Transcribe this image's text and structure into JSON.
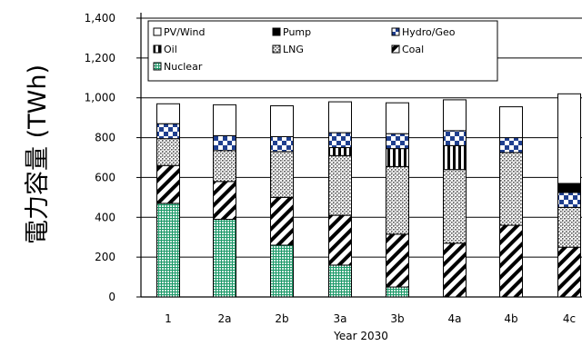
{
  "chart_data": {
    "type": "bar",
    "stacked": true,
    "xlabel": "Year 2030",
    "ylabel": "電力容量 (TWh)",
    "ylim": [
      0,
      1400
    ],
    "yticks": [
      0,
      200,
      400,
      600,
      800,
      1000,
      1200,
      1400
    ],
    "ytick_labels": [
      "0",
      "200",
      "400",
      "600",
      "800",
      "1,000",
      "1,200",
      "1,400"
    ],
    "categories": [
      "1",
      "2a",
      "2b",
      "3a",
      "3b",
      "4a",
      "4b",
      "4c"
    ],
    "grid": true,
    "legend_position": "top",
    "series": [
      {
        "name": "Nuclear",
        "key": "nuclear",
        "values": [
          470,
          390,
          260,
          160,
          50,
          0,
          0,
          0
        ]
      },
      {
        "name": "Coal",
        "key": "coal",
        "values": [
          190,
          190,
          240,
          250,
          265,
          270,
          360,
          250
        ]
      },
      {
        "name": "LNG",
        "key": "lng",
        "values": [
          135,
          155,
          230,
          300,
          340,
          370,
          365,
          200
        ]
      },
      {
        "name": "Oil",
        "key": "oil",
        "values": [
          0,
          0,
          0,
          40,
          90,
          120,
          0,
          0
        ]
      },
      {
        "name": "Hydro/Geo",
        "key": "hydro",
        "values": [
          75,
          75,
          75,
          75,
          75,
          75,
          75,
          75
        ]
      },
      {
        "name": "Pump",
        "key": "pump",
        "values": [
          0,
          0,
          0,
          0,
          0,
          0,
          0,
          45
        ]
      },
      {
        "name": "PV/Wind",
        "key": "pv",
        "values": [
          100,
          155,
          155,
          155,
          155,
          155,
          155,
          450
        ]
      }
    ],
    "legend_order": [
      "pv",
      "pump",
      "hydro",
      "oil",
      "lng",
      "coal",
      "nuclear"
    ]
  }
}
